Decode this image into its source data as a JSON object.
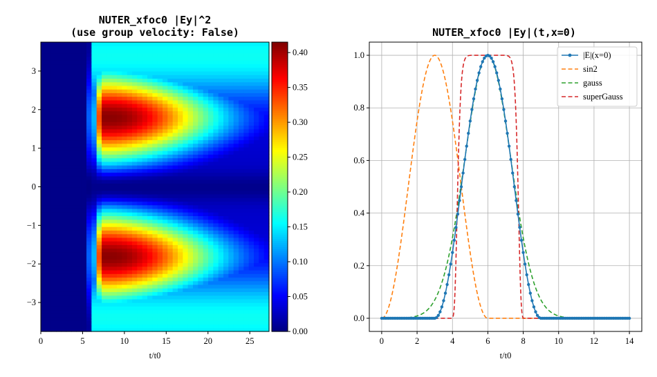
{
  "chart_data": [
    {
      "type": "heatmap",
      "title_lines": [
        "NUTER_xfoc0 |Ey|^2",
        "(use group velocity: False)"
      ],
      "xlabel": "t/t0",
      "ylabel": "",
      "xlim": [
        0,
        27.3
      ],
      "ylim": [
        -3.75,
        3.75
      ],
      "x_ticks": [
        0,
        5,
        10,
        15,
        20,
        25
      ],
      "y_ticks": [
        3,
        2,
        1,
        0,
        -1,
        -2,
        -3
      ],
      "y_tick_labels": [
        "3",
        "2",
        "1",
        "0",
        "−1",
        "−2",
        "−3"
      ],
      "colormap": "jet",
      "colorbar": {
        "min": 0.0,
        "max": 0.415,
        "ticks": [
          "0.00",
          "0.05",
          "0.10",
          "0.15",
          "0.20",
          "0.25",
          "0.30",
          "0.35",
          "0.40"
        ]
      },
      "field": {
        "description_of_values": "intensity |Ey|^2",
        "peak_value": 0.41,
        "peak_t": 8.5,
        "peak_y": [
          1.8,
          -1.8
        ],
        "onset_t": 6.0,
        "precursor_start_t": 5.5,
        "cells_t": 45,
        "cells_y": 80
      }
    },
    {
      "type": "line",
      "title": "NUTER_xfoc0 |Ey|(t,x=0)",
      "xlabel": "t/t0",
      "ylabel": "",
      "xlim": [
        -0.7,
        14.7
      ],
      "ylim": [
        -0.05,
        1.05
      ],
      "x_ticks": [
        0,
        2,
        4,
        6,
        8,
        10,
        12,
        14
      ],
      "y_ticks": [
        0.0,
        0.2,
        0.4,
        0.6,
        0.8,
        1.0
      ],
      "y_tick_labels": [
        "0.0",
        "0.2",
        "0.4",
        "0.6",
        "0.8",
        "1.0"
      ],
      "grid": true,
      "legend_position": "top-right",
      "series": [
        {
          "name": "|E|(x=0)",
          "color": "#1f77b4",
          "style": "solid-markers",
          "formula": "sin2 pulse, center 6, half-width 3"
        },
        {
          "name": "sin2",
          "color": "#ff7f0e",
          "style": "dashed",
          "formula": "sin2 pulse, center 3, half-width 3"
        },
        {
          "name": "gauss",
          "color": "#2ca02c",
          "style": "dashed",
          "formula": "gaussian, center 6, sigma 1.3"
        },
        {
          "name": "superGauss",
          "color": "#d62728",
          "style": "dashed",
          "formula": "super-gaussian, center 6, order 14"
        }
      ]
    }
  ]
}
